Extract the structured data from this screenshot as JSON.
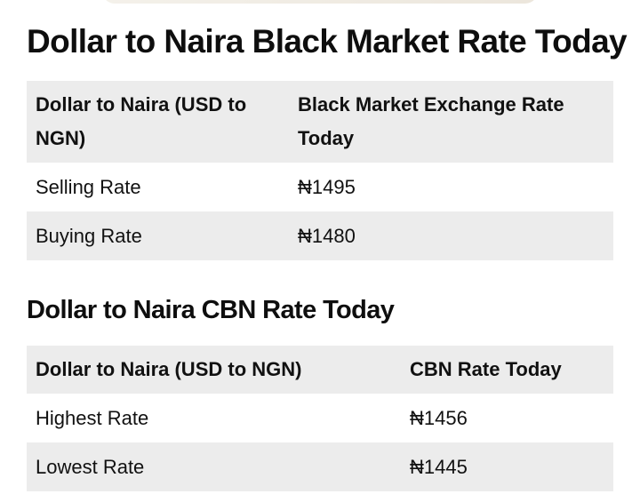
{
  "section1": {
    "title": "Dollar to Naira Black Market Rate Today",
    "headers": [
      "Dollar to Naira (USD to NGN)",
      "Black Market Exchange Rate Today"
    ],
    "rows": [
      {
        "label": "Selling Rate",
        "value": "₦1495"
      },
      {
        "label": "Buying Rate",
        "value": "₦1480"
      }
    ]
  },
  "section2": {
    "title": "Dollar to Naira CBN Rate Today",
    "headers": [
      "Dollar to Naira (USD to NGN)",
      "CBN Rate Today"
    ],
    "rows": [
      {
        "label": "Highest Rate",
        "value": "₦1456"
      },
      {
        "label": "Lowest Rate",
        "value": "₦1445"
      }
    ]
  },
  "colors": {
    "shaded_row": "#ececec",
    "text": "#111111"
  }
}
